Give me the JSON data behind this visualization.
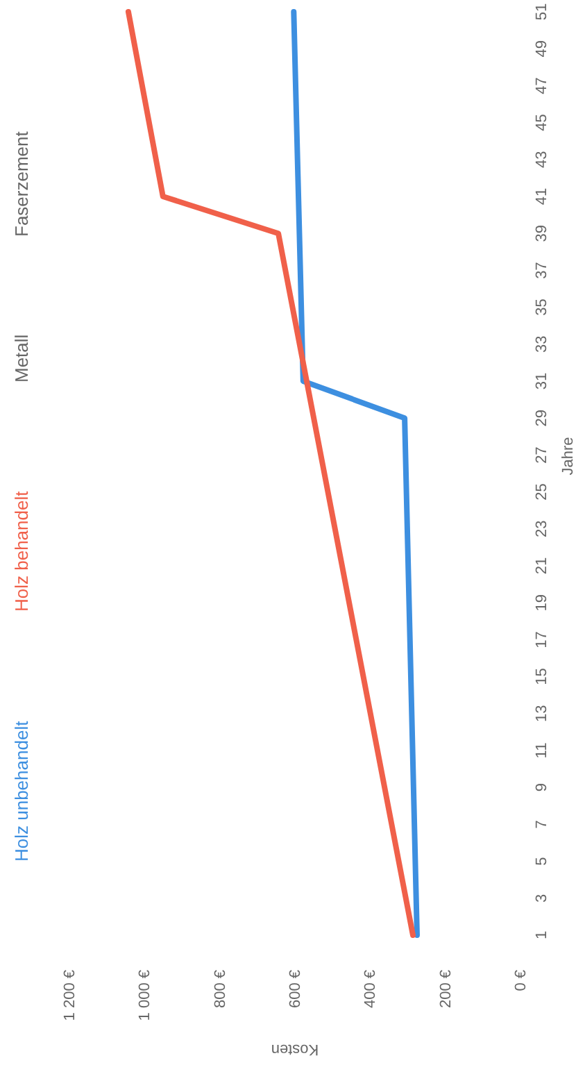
{
  "chart_data": {
    "type": "line",
    "xlabel": "Kosten",
    "ylabel": "Jahre",
    "xlim": [
      1200,
      0
    ],
    "xticks": [
      {
        "value": 0,
        "label": "0 €"
      },
      {
        "value": 200,
        "label": "200 €"
      },
      {
        "value": 400,
        "label": "400 €"
      },
      {
        "value": 600,
        "label": "600 €"
      },
      {
        "value": 800,
        "label": "800 €"
      },
      {
        "value": 1000,
        "label": "1 000 €"
      },
      {
        "value": 1200,
        "label": "1 200 €"
      }
    ],
    "ylim": [
      1,
      51
    ],
    "yticks": [
      1,
      3,
      5,
      7,
      9,
      11,
      13,
      15,
      17,
      19,
      21,
      23,
      25,
      27,
      29,
      31,
      33,
      35,
      37,
      39,
      41,
      43,
      45,
      47,
      49,
      51
    ],
    "legend": "left",
    "grid": false,
    "series": [
      {
        "name": "Holz unbehandelt",
        "color": "#3d8fe0",
        "x": [
          277,
          310,
          580,
          605
        ],
        "values": [
          1,
          29,
          31,
          51
        ]
      },
      {
        "name": "Holz behandelt",
        "color": "#f0604a",
        "x": [
          288,
          646,
          953,
          1045
        ],
        "values": [
          1,
          39,
          41,
          51
        ]
      },
      {
        "name": "Metall"
      },
      {
        "name": "Faserzement"
      }
    ]
  }
}
